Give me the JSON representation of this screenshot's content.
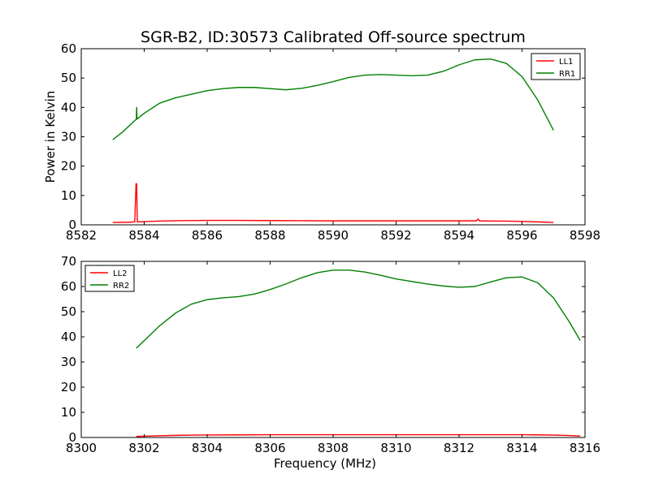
{
  "figure": {
    "title": "SGR-B2, ID:30573 Calibrated Off-source spectrum"
  },
  "chart_data": [
    {
      "type": "line",
      "title": "SGR-B2, ID:30573 Calibrated Off-source spectrum",
      "xlabel": "",
      "ylabel": "Power in Kelvin",
      "xlim": [
        8582,
        8598
      ],
      "ylim": [
        0,
        60
      ],
      "xticks": [
        8582,
        8584,
        8586,
        8588,
        8590,
        8592,
        8594,
        8596,
        8598
      ],
      "yticks": [
        0,
        10,
        20,
        30,
        40,
        50,
        60
      ],
      "legend": "top-right",
      "grid": false,
      "series": [
        {
          "name": "LL1",
          "color": "#ff0000",
          "x": [
            8583.0,
            8583.5,
            8583.7,
            8583.74,
            8583.76,
            8583.78,
            8583.8,
            8584.0,
            8584.5,
            8585.0,
            8586.0,
            8587.0,
            8588.0,
            8589.0,
            8590.0,
            8591.0,
            8592.0,
            8593.0,
            8594.0,
            8594.55,
            8594.6,
            8594.65,
            8595.0,
            8595.5,
            8596.0,
            8596.5,
            8597.0
          ],
          "y": [
            0.8,
            0.9,
            1.0,
            14.0,
            14.0,
            1.0,
            1.0,
            1.1,
            1.3,
            1.4,
            1.5,
            1.5,
            1.45,
            1.4,
            1.35,
            1.35,
            1.35,
            1.35,
            1.35,
            1.35,
            2.0,
            1.35,
            1.3,
            1.25,
            1.15,
            1.0,
            0.8
          ]
        },
        {
          "name": "RR1",
          "color": "#008000",
          "x": [
            8583.0,
            8583.3,
            8583.6,
            8583.75,
            8583.76,
            8583.77,
            8584.0,
            8584.5,
            8585.0,
            8585.5,
            8586.0,
            8586.5,
            8587.0,
            8587.5,
            8588.0,
            8588.5,
            8589.0,
            8589.5,
            8590.0,
            8590.5,
            8591.0,
            8591.5,
            8592.0,
            8592.5,
            8593.0,
            8593.5,
            8594.0,
            8594.5,
            8595.0,
            8595.5,
            8596.0,
            8596.5,
            8597.0
          ],
          "y": [
            29.0,
            31.5,
            34.5,
            36.0,
            40.0,
            36.0,
            38.0,
            41.5,
            43.3,
            44.5,
            45.7,
            46.4,
            46.8,
            46.8,
            46.4,
            46.0,
            46.5,
            47.5,
            48.8,
            50.2,
            51.0,
            51.2,
            51.0,
            50.8,
            51.0,
            52.3,
            54.5,
            56.2,
            56.5,
            55.0,
            50.5,
            42.5,
            32.2
          ]
        }
      ]
    },
    {
      "type": "line",
      "title": "",
      "xlabel": "Frequency (MHz)",
      "ylabel": "",
      "xlim": [
        8300,
        8316
      ],
      "ylim": [
        0,
        70
      ],
      "xticks": [
        8300,
        8302,
        8304,
        8306,
        8308,
        8310,
        8312,
        8314,
        8316
      ],
      "yticks": [
        0,
        10,
        20,
        30,
        40,
        50,
        60,
        70
      ],
      "legend": "top-left",
      "grid": false,
      "series": [
        {
          "name": "LL2",
          "color": "#ff0000",
          "x": [
            8301.75,
            8302.0,
            8302.5,
            8303.0,
            8303.5,
            8304.0,
            8305.0,
            8306.0,
            8307.0,
            8308.0,
            8309.0,
            8310.0,
            8311.0,
            8312.0,
            8313.0,
            8314.0,
            8314.5,
            8315.0,
            8315.5,
            8315.85
          ],
          "y": [
            0.4,
            0.5,
            0.7,
            0.85,
            0.95,
            1.0,
            1.05,
            1.1,
            1.1,
            1.1,
            1.1,
            1.1,
            1.1,
            1.1,
            1.1,
            1.1,
            1.05,
            0.95,
            0.8,
            0.6
          ]
        },
        {
          "name": "RR2",
          "color": "#008000",
          "x": [
            8301.75,
            8302.0,
            8302.5,
            8303.0,
            8303.5,
            8304.0,
            8304.5,
            8305.0,
            8305.5,
            8306.0,
            8306.5,
            8307.0,
            8307.5,
            8308.0,
            8308.5,
            8309.0,
            8309.5,
            8310.0,
            8310.5,
            8311.0,
            8311.5,
            8312.0,
            8312.5,
            8313.0,
            8313.5,
            8314.0,
            8314.5,
            8315.0,
            8315.5,
            8315.85
          ],
          "y": [
            35.5,
            38.5,
            44.5,
            49.5,
            53.0,
            54.8,
            55.5,
            56.0,
            57.0,
            58.8,
            61.0,
            63.5,
            65.5,
            66.5,
            66.5,
            65.8,
            64.5,
            63.0,
            62.0,
            61.0,
            60.2,
            59.7,
            60.0,
            61.8,
            63.5,
            63.8,
            61.5,
            55.5,
            46.0,
            38.5
          ]
        }
      ]
    }
  ]
}
